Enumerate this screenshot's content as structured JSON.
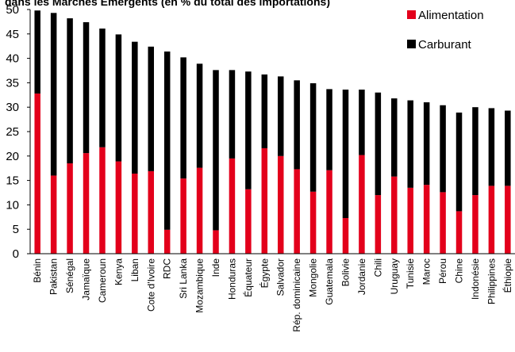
{
  "chart_data": {
    "type": "bar",
    "stacked": true,
    "title": "dans les Marchés Émergents (en % du total des importations)",
    "ylim": [
      0,
      50
    ],
    "yticks": [
      0,
      5,
      10,
      15,
      20,
      25,
      30,
      35,
      40,
      45,
      50
    ],
    "grid": false,
    "legend_position": "top-right",
    "categories": [
      "Bénin",
      "Pakistan",
      "Sénégal",
      "Jamaïque",
      "Cameroun",
      "Kenya",
      "Liban",
      "Cote d'Ivoire",
      "RDC",
      "Sri Lanka",
      "Mozambique",
      "Inde",
      "Honduras",
      "Équateur",
      "Égypte",
      "Salvador",
      "Rép. dominicaine",
      "Mongolie",
      "Guatemala",
      "Bolivie",
      "Jordanie",
      "Chili",
      "Uruguay",
      "Tunisie",
      "Maroc",
      "Pérou",
      "Chine",
      "Indonésie",
      "Philippines",
      "Éthiopie"
    ],
    "series": [
      {
        "name": "Alimentation",
        "color": "#e3001b",
        "values": [
          32.8,
          16.0,
          18.5,
          20.6,
          21.8,
          18.9,
          16.4,
          16.9,
          4.9,
          15.4,
          17.6,
          4.8,
          19.5,
          13.2,
          21.6,
          20.0,
          17.3,
          12.7,
          17.1,
          7.3,
          20.2,
          12.0,
          15.8,
          13.5,
          14.1,
          12.6,
          8.7,
          12.0,
          13.9,
          13.9
        ]
      },
      {
        "name": "Carburant",
        "color": "#000000",
        "values": [
          17.0,
          33.3,
          29.7,
          26.8,
          24.3,
          26.0,
          27.0,
          25.5,
          36.5,
          24.8,
          21.3,
          32.8,
          18.1,
          24.1,
          15.1,
          16.3,
          18.2,
          22.2,
          16.6,
          26.3,
          13.4,
          21.0,
          16.0,
          17.9,
          16.9,
          17.8,
          20.2,
          18.0,
          15.9,
          15.4
        ]
      }
    ]
  }
}
